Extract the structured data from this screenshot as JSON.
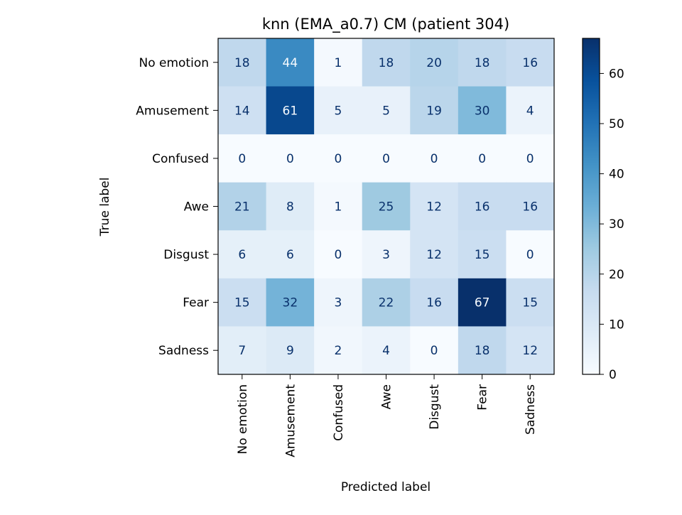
{
  "chart_data": {
    "type": "heatmap",
    "title": "knn (EMA_a0.7) CM (patient 304)",
    "xlabel": "Predicted label",
    "ylabel": "True label",
    "categories": [
      "No emotion",
      "Amusement",
      "Confused",
      "Awe",
      "Disgust",
      "Fear",
      "Sadness"
    ],
    "matrix": [
      [
        18,
        44,
        1,
        18,
        20,
        18,
        16
      ],
      [
        14,
        61,
        5,
        5,
        19,
        30,
        4
      ],
      [
        0,
        0,
        0,
        0,
        0,
        0,
        0
      ],
      [
        21,
        8,
        1,
        25,
        12,
        16,
        16
      ],
      [
        6,
        6,
        0,
        3,
        12,
        15,
        0
      ],
      [
        15,
        32,
        3,
        22,
        16,
        67,
        15
      ],
      [
        7,
        9,
        2,
        4,
        0,
        18,
        12
      ]
    ],
    "colormap": "Blues",
    "vmin": 0,
    "vmax": 67,
    "colorbar_ticks": [
      0,
      10,
      20,
      30,
      40,
      50,
      60
    ]
  }
}
